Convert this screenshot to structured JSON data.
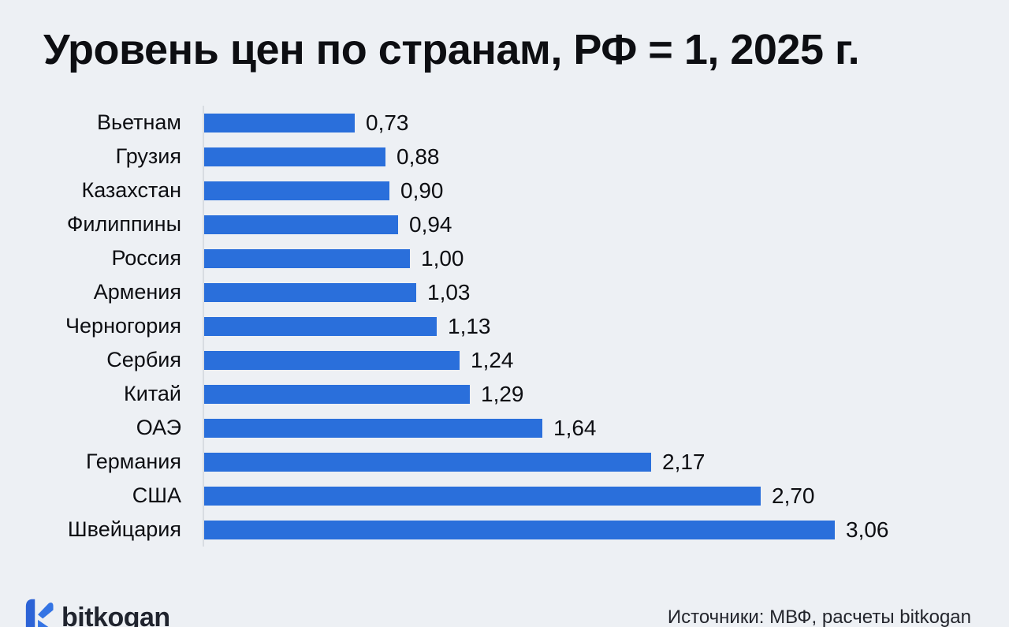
{
  "page": {
    "background_color": "#edf0f4"
  },
  "header": {
    "title": "Уровень цен по странам, РФ = 1, 2025 г."
  },
  "chart_data": {
    "type": "bar",
    "orientation": "horizontal",
    "title": "Уровень цен по странам, РФ = 1, 2025 г.",
    "categories": [
      "Вьетнам",
      "Грузия",
      "Казахстан",
      "Филиппины",
      "Россия",
      "Армения",
      "Черногория",
      "Сербия",
      "Китай",
      "ОАЭ",
      "Германия",
      "США",
      "Швейцария"
    ],
    "values": [
      0.73,
      0.88,
      0.9,
      0.94,
      1.0,
      1.03,
      1.13,
      1.24,
      1.29,
      1.64,
      2.17,
      2.7,
      3.06
    ],
    "value_labels": [
      "0,73",
      "0,88",
      "0,90",
      "0,94",
      "1,00",
      "1,03",
      "1,13",
      "1,24",
      "1,29",
      "1,64",
      "2,17",
      "2,70",
      "3,06"
    ],
    "xlim": [
      0,
      3.06
    ],
    "xlabel": "",
    "ylabel": "",
    "grid": false,
    "legend": false,
    "bar_color": "#2a6fdb",
    "axis_line_color": "#d8dce2",
    "value_label_position": "right-of-bar",
    "decimal_separator": ","
  },
  "footer": {
    "logo_text": "bitkogan",
    "source_label": "Источники: МВФ, расчеты bitkogan"
  },
  "icons": {
    "logo_mark": "bitkogan-logo-icon",
    "logo_colors": [
      "#2c63d6",
      "#3474e4"
    ]
  }
}
